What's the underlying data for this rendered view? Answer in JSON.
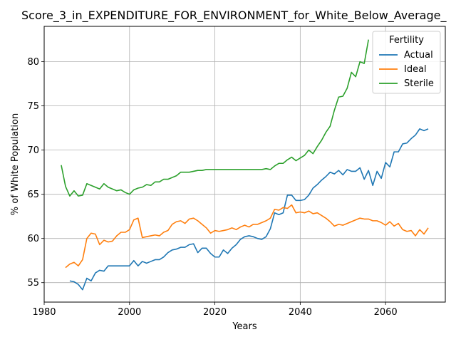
{
  "chart_data": {
    "type": "line",
    "title": "Score_3_in_EXPENDITURE_FOR_ENVIRONMENT_for_White_Below_Average_",
    "xlabel": "Years",
    "ylabel": "% of White Population",
    "xlim": [
      1980,
      2074
    ],
    "ylim": [
      52.8,
      84.0
    ],
    "xticks": [
      1980,
      2000,
      2020,
      2040,
      2060
    ],
    "yticks": [
      55,
      60,
      65,
      70,
      75,
      80
    ],
    "grid": true,
    "legend": {
      "title": "Fertility",
      "placement": "top-right"
    },
    "series": [
      {
        "name": "Actual",
        "color": "#1f77b4",
        "points": [
          [
            1986,
            55.2
          ],
          [
            1987,
            55.1
          ],
          [
            1988,
            54.8
          ],
          [
            1989,
            54.2
          ],
          [
            1990,
            55.5
          ],
          [
            1991,
            55.2
          ],
          [
            1992,
            56.1
          ],
          [
            1993,
            56.4
          ],
          [
            1994,
            56.3
          ],
          [
            1995,
            56.9
          ],
          [
            1996,
            56.9
          ],
          [
            1997,
            56.9
          ],
          [
            1998,
            56.9
          ],
          [
            1999,
            56.9
          ],
          [
            2000,
            56.9
          ],
          [
            2001,
            57.5
          ],
          [
            2002,
            56.9
          ],
          [
            2003,
            57.4
          ],
          [
            2004,
            57.2
          ],
          [
            2005,
            57.4
          ],
          [
            2006,
            57.6
          ],
          [
            2007,
            57.6
          ],
          [
            2008,
            57.9
          ],
          [
            2009,
            58.4
          ],
          [
            2010,
            58.7
          ],
          [
            2011,
            58.8
          ],
          [
            2012,
            59.0
          ],
          [
            2013,
            59.0
          ],
          [
            2014,
            59.3
          ],
          [
            2015,
            59.4
          ],
          [
            2016,
            58.4
          ],
          [
            2017,
            58.9
          ],
          [
            2018,
            58.9
          ],
          [
            2019,
            58.3
          ],
          [
            2020,
            57.9
          ],
          [
            2021,
            57.9
          ],
          [
            2022,
            58.7
          ],
          [
            2023,
            58.3
          ],
          [
            2024,
            58.9
          ],
          [
            2025,
            59.3
          ],
          [
            2026,
            59.9
          ],
          [
            2027,
            60.2
          ],
          [
            2028,
            60.3
          ],
          [
            2029,
            60.2
          ],
          [
            2030,
            60.0
          ],
          [
            2031,
            59.9
          ],
          [
            2032,
            60.2
          ],
          [
            2033,
            61.1
          ],
          [
            2034,
            62.9
          ],
          [
            2035,
            62.7
          ],
          [
            2036,
            62.9
          ],
          [
            2037,
            64.9
          ],
          [
            2038,
            64.9
          ],
          [
            2039,
            64.3
          ],
          [
            2040,
            64.3
          ],
          [
            2041,
            64.4
          ],
          [
            2042,
            64.9
          ],
          [
            2043,
            65.7
          ],
          [
            2044,
            66.1
          ],
          [
            2045,
            66.6
          ],
          [
            2046,
            67.0
          ],
          [
            2047,
            67.5
          ],
          [
            2048,
            67.3
          ],
          [
            2049,
            67.7
          ],
          [
            2050,
            67.2
          ],
          [
            2051,
            67.8
          ],
          [
            2052,
            67.6
          ],
          [
            2053,
            67.6
          ],
          [
            2054,
            68.0
          ],
          [
            2055,
            66.7
          ],
          [
            2056,
            67.7
          ],
          [
            2057,
            66.0
          ],
          [
            2058,
            67.6
          ],
          [
            2059,
            66.8
          ],
          [
            2060,
            68.6
          ],
          [
            2061,
            68.1
          ],
          [
            2062,
            69.8
          ],
          [
            2063,
            69.8
          ],
          [
            2064,
            70.7
          ],
          [
            2065,
            70.8
          ],
          [
            2066,
            71.3
          ],
          [
            2067,
            71.7
          ],
          [
            2068,
            72.4
          ],
          [
            2069,
            72.2
          ],
          [
            2070,
            72.4
          ]
        ]
      },
      {
        "name": "Ideal",
        "color": "#ff7f0e",
        "points": [
          [
            1985,
            56.7
          ],
          [
            1986,
            57.1
          ],
          [
            1987,
            57.3
          ],
          [
            1988,
            56.9
          ],
          [
            1989,
            57.6
          ],
          [
            1990,
            60.0
          ],
          [
            1991,
            60.6
          ],
          [
            1992,
            60.5
          ],
          [
            1993,
            59.3
          ],
          [
            1994,
            59.8
          ],
          [
            1995,
            59.6
          ],
          [
            1996,
            59.7
          ],
          [
            1997,
            60.3
          ],
          [
            1998,
            60.7
          ],
          [
            1999,
            60.7
          ],
          [
            2000,
            61.0
          ],
          [
            2001,
            62.1
          ],
          [
            2002,
            62.3
          ],
          [
            2003,
            60.1
          ],
          [
            2004,
            60.2
          ],
          [
            2005,
            60.3
          ],
          [
            2006,
            60.4
          ],
          [
            2007,
            60.3
          ],
          [
            2008,
            60.7
          ],
          [
            2009,
            60.9
          ],
          [
            2010,
            61.6
          ],
          [
            2011,
            61.9
          ],
          [
            2012,
            62.0
          ],
          [
            2013,
            61.7
          ],
          [
            2014,
            62.2
          ],
          [
            2015,
            62.3
          ],
          [
            2016,
            62.0
          ],
          [
            2017,
            61.6
          ],
          [
            2018,
            61.2
          ],
          [
            2019,
            60.6
          ],
          [
            2020,
            60.9
          ],
          [
            2021,
            60.8
          ],
          [
            2022,
            60.9
          ],
          [
            2023,
            61.0
          ],
          [
            2024,
            61.2
          ],
          [
            2025,
            61.0
          ],
          [
            2026,
            61.3
          ],
          [
            2027,
            61.5
          ],
          [
            2028,
            61.3
          ],
          [
            2029,
            61.6
          ],
          [
            2030,
            61.6
          ],
          [
            2031,
            61.8
          ],
          [
            2032,
            62.0
          ],
          [
            2033,
            62.3
          ],
          [
            2034,
            63.3
          ],
          [
            2035,
            63.2
          ],
          [
            2036,
            63.5
          ],
          [
            2037,
            63.4
          ],
          [
            2038,
            63.8
          ],
          [
            2039,
            62.9
          ],
          [
            2040,
            63.0
          ],
          [
            2041,
            62.9
          ],
          [
            2042,
            63.1
          ],
          [
            2043,
            62.8
          ],
          [
            2044,
            62.9
          ],
          [
            2045,
            62.6
          ],
          [
            2046,
            62.3
          ],
          [
            2047,
            61.9
          ],
          [
            2048,
            61.4
          ],
          [
            2049,
            61.6
          ],
          [
            2050,
            61.5
          ],
          [
            2051,
            61.7
          ],
          [
            2052,
            61.9
          ],
          [
            2053,
            62.1
          ],
          [
            2054,
            62.3
          ],
          [
            2055,
            62.2
          ],
          [
            2056,
            62.2
          ],
          [
            2057,
            62.0
          ],
          [
            2058,
            62.0
          ],
          [
            2059,
            61.8
          ],
          [
            2060,
            61.5
          ],
          [
            2061,
            61.9
          ],
          [
            2062,
            61.4
          ],
          [
            2063,
            61.7
          ],
          [
            2064,
            61.0
          ],
          [
            2065,
            60.8
          ],
          [
            2066,
            60.9
          ],
          [
            2067,
            60.3
          ],
          [
            2068,
            61.0
          ],
          [
            2069,
            60.5
          ],
          [
            2070,
            61.2
          ]
        ]
      },
      {
        "name": "Sterile",
        "color": "#2ca02c",
        "points": [
          [
            1984,
            68.3
          ],
          [
            1985,
            65.9
          ],
          [
            1986,
            64.8
          ],
          [
            1987,
            65.4
          ],
          [
            1988,
            64.8
          ],
          [
            1989,
            64.9
          ],
          [
            1990,
            66.2
          ],
          [
            1991,
            66.0
          ],
          [
            1992,
            65.8
          ],
          [
            1993,
            65.6
          ],
          [
            1994,
            66.2
          ],
          [
            1995,
            65.8
          ],
          [
            1996,
            65.6
          ],
          [
            1997,
            65.4
          ],
          [
            1998,
            65.5
          ],
          [
            1999,
            65.2
          ],
          [
            2000,
            65.0
          ],
          [
            2001,
            65.5
          ],
          [
            2002,
            65.7
          ],
          [
            2003,
            65.8
          ],
          [
            2004,
            66.1
          ],
          [
            2005,
            66.0
          ],
          [
            2006,
            66.4
          ],
          [
            2007,
            66.4
          ],
          [
            2008,
            66.7
          ],
          [
            2009,
            66.7
          ],
          [
            2010,
            66.9
          ],
          [
            2011,
            67.1
          ],
          [
            2012,
            67.5
          ],
          [
            2013,
            67.5
          ],
          [
            2014,
            67.5
          ],
          [
            2015,
            67.6
          ],
          [
            2016,
            67.7
          ],
          [
            2017,
            67.7
          ],
          [
            2018,
            67.8
          ],
          [
            2019,
            67.8
          ],
          [
            2020,
            67.8
          ],
          [
            2021,
            67.8
          ],
          [
            2022,
            67.8
          ],
          [
            2023,
            67.8
          ],
          [
            2024,
            67.8
          ],
          [
            2025,
            67.8
          ],
          [
            2026,
            67.8
          ],
          [
            2027,
            67.8
          ],
          [
            2028,
            67.8
          ],
          [
            2029,
            67.8
          ],
          [
            2030,
            67.8
          ],
          [
            2031,
            67.8
          ],
          [
            2032,
            67.9
          ],
          [
            2033,
            67.8
          ],
          [
            2034,
            68.2
          ],
          [
            2035,
            68.5
          ],
          [
            2036,
            68.5
          ],
          [
            2037,
            68.9
          ],
          [
            2038,
            69.2
          ],
          [
            2039,
            68.8
          ],
          [
            2040,
            69.1
          ],
          [
            2041,
            69.4
          ],
          [
            2042,
            70.0
          ],
          [
            2043,
            69.6
          ],
          [
            2044,
            70.4
          ],
          [
            2045,
            71.1
          ],
          [
            2046,
            72.0
          ],
          [
            2047,
            72.7
          ],
          [
            2048,
            74.5
          ],
          [
            2049,
            76.0
          ],
          [
            2050,
            76.1
          ],
          [
            2051,
            77.0
          ],
          [
            2052,
            78.8
          ],
          [
            2053,
            78.3
          ],
          [
            2054,
            80.0
          ],
          [
            2055,
            79.8
          ],
          [
            2056,
            82.5
          ]
        ]
      }
    ]
  }
}
